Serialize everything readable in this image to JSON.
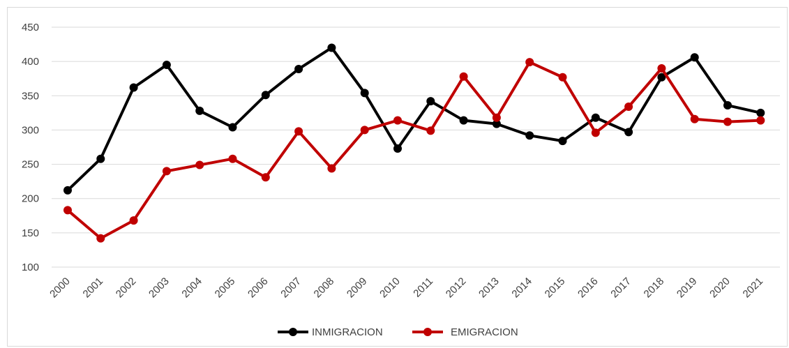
{
  "chart_data": {
    "type": "line",
    "x": [
      "2000",
      "2001",
      "2002",
      "2003",
      "2004",
      "2005",
      "2006",
      "2007",
      "2008",
      "2009",
      "2010",
      "2011",
      "2012",
      "2013",
      "2014",
      "2015",
      "2016",
      "2017",
      "2018",
      "2019",
      "2020",
      "2021"
    ],
    "series": [
      {
        "name": "INMIGRACION",
        "color": "#000000",
        "values": [
          212,
          258,
          362,
          395,
          328,
          304,
          351,
          389,
          420,
          354,
          273,
          342,
          314,
          309,
          292,
          284,
          318,
          297,
          377,
          406,
          336,
          325
        ]
      },
      {
        "name": "EMIGRACION",
        "color": "#c00000",
        "values": [
          183,
          142,
          168,
          240,
          249,
          258,
          231,
          298,
          244,
          300,
          314,
          299,
          378,
          318,
          399,
          377,
          296,
          334,
          390,
          316,
          312,
          314
        ]
      }
    ],
    "ylim": [
      100,
      450
    ],
    "yticks": [
      "100",
      "150",
      "200",
      "250",
      "300",
      "350",
      "400",
      "450"
    ],
    "grid": true,
    "legend_position": "bottom"
  }
}
